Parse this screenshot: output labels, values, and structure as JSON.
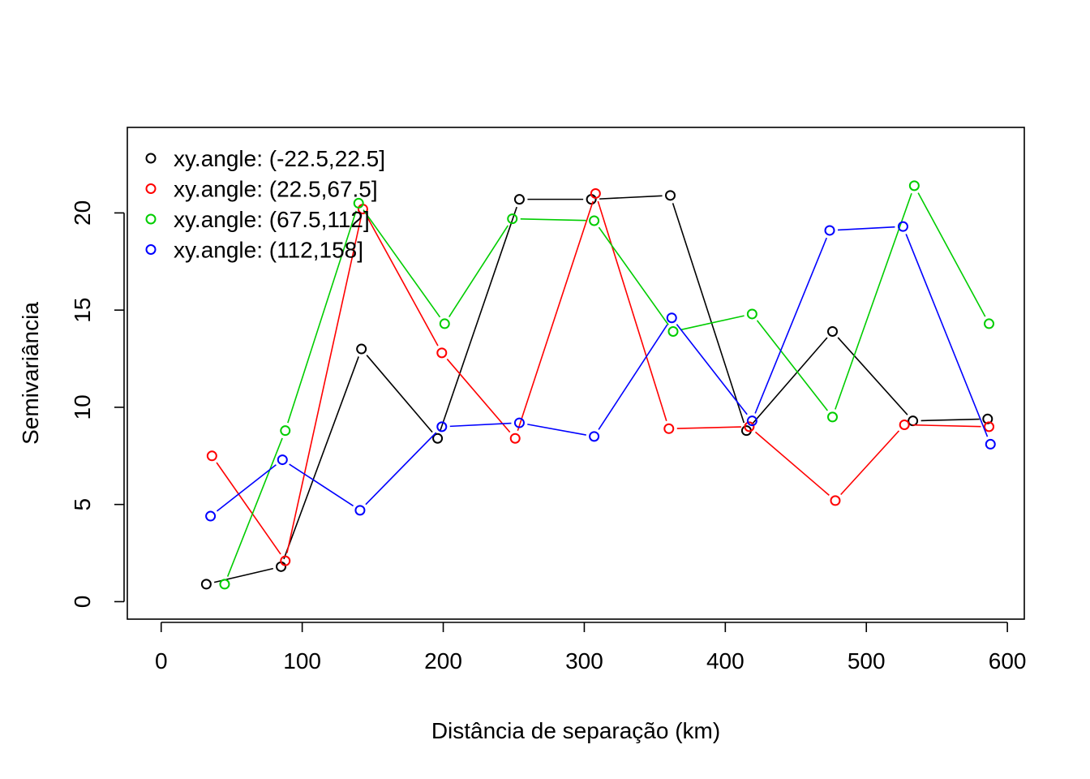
{
  "chart_data": {
    "type": "line",
    "xlabel": "Distância de separação (km)",
    "ylabel": "Semivariância",
    "xlim": [
      -24,
      612
    ],
    "ylim": [
      -0.9,
      24.4
    ],
    "xticks": [
      0,
      100,
      200,
      300,
      400,
      500,
      600
    ],
    "yticks": [
      0,
      5,
      10,
      15,
      20
    ],
    "grid": false,
    "legend_position": "top-left",
    "series": [
      {
        "name": "xy.angle: (-22.5,22.5]",
        "color": "#000000",
        "points": [
          [
            32,
            0.9
          ],
          [
            85,
            1.8
          ],
          [
            142,
            13.0
          ],
          [
            196,
            8.4
          ],
          [
            254,
            20.7
          ],
          [
            305,
            20.7
          ],
          [
            361,
            20.9
          ],
          [
            415,
            8.8
          ],
          [
            476,
            13.9
          ],
          [
            533,
            9.3
          ],
          [
            586,
            9.4
          ]
        ]
      },
      {
        "name": "xy.angle: (22.5,67.5]",
        "color": "#ff0000",
        "points": [
          [
            36,
            7.5
          ],
          [
            88,
            2.1
          ],
          [
            143,
            20.2
          ],
          [
            199,
            12.8
          ],
          [
            251,
            8.4
          ],
          [
            308,
            21.0
          ],
          [
            360,
            8.9
          ],
          [
            417,
            9.0
          ],
          [
            478,
            5.2
          ],
          [
            527,
            9.1
          ],
          [
            587,
            9.0
          ]
        ]
      },
      {
        "name": "xy.angle: (67.5,112]",
        "color": "#00cd00",
        "points": [
          [
            45,
            0.9
          ],
          [
            88,
            8.8
          ],
          [
            140,
            20.5
          ],
          [
            201,
            14.3
          ],
          [
            249,
            19.7
          ],
          [
            307,
            19.6
          ],
          [
            363,
            13.9
          ],
          [
            419,
            14.8
          ],
          [
            476,
            9.5
          ],
          [
            534,
            21.4
          ],
          [
            587,
            14.3
          ]
        ]
      },
      {
        "name": "xy.angle: (112,158]",
        "color": "#0000ff",
        "points": [
          [
            35,
            4.4
          ],
          [
            86,
            7.3
          ],
          [
            141,
            4.7
          ],
          [
            199,
            9.0
          ],
          [
            254,
            9.2
          ],
          [
            307,
            8.5
          ],
          [
            362,
            14.6
          ],
          [
            419,
            9.3
          ],
          [
            474,
            19.1
          ],
          [
            526,
            19.3
          ],
          [
            588,
            8.1
          ]
        ]
      }
    ]
  }
}
